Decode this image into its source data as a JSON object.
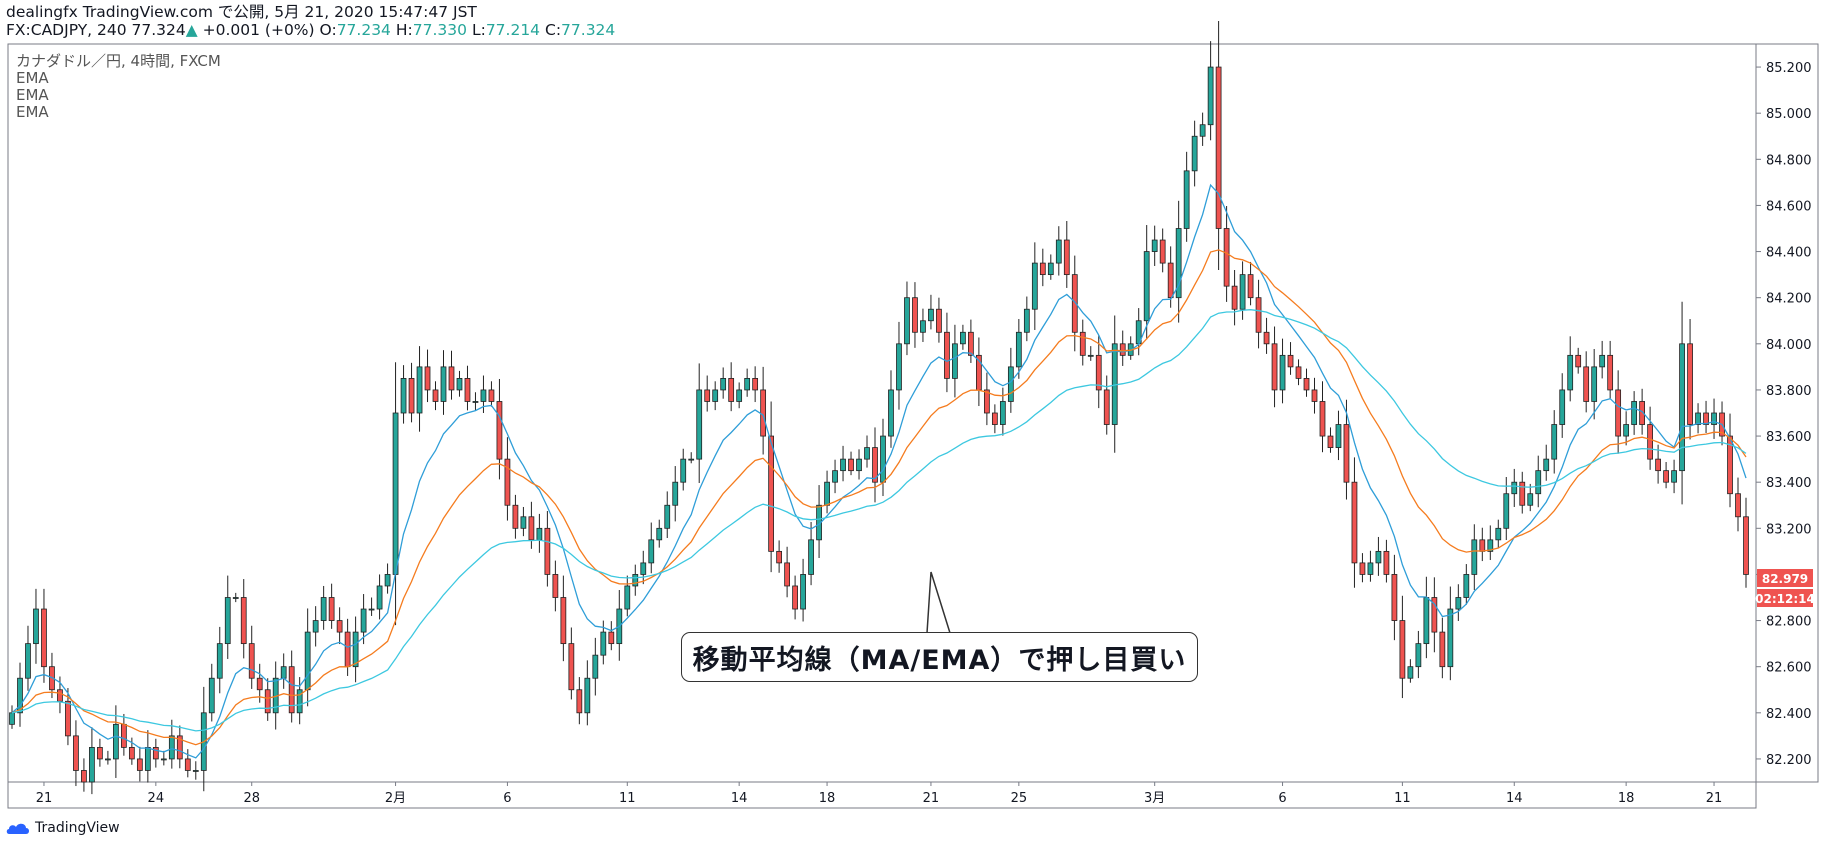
{
  "header": {
    "line1": "dealingfx TradingView.com で公開, 5月 21, 2020 15:47:47 JST",
    "symbol": "FX:CADJPY, 240 77.324",
    "change": "+0.001 (+0%)",
    "open_label": "O:",
    "open": "77.234",
    "high_label": "H:",
    "high": "77.330",
    "low_label": "L:",
    "low": "77.214",
    "close_label": "C:",
    "close": "77.324"
  },
  "legend": {
    "title": "カナダドル／円, 4時間, FXCM",
    "indicators": [
      "EMA",
      "EMA",
      "EMA"
    ]
  },
  "callout": {
    "text": "移動平均線（MA/EMA）で押し目買い"
  },
  "price_tags": {
    "last": "82.979",
    "countdown": "02:12:14"
  },
  "footer": {
    "brand": "TradingView"
  },
  "colors": {
    "up": "#26a69a",
    "down": "#ef5350",
    "candle_border": "#222222",
    "ema_fast": "#2f9ed8",
    "ema_mid": "#f57c1f",
    "ema_slow": "#3dc8e0",
    "price_tag": "#ef5350"
  },
  "chart_data": {
    "type": "candlestick",
    "ylim": [
      82.1,
      85.3
    ],
    "y_ticks": [
      "85.200",
      "85.000",
      "84.800",
      "84.600",
      "84.400",
      "84.200",
      "84.000",
      "83.800",
      "83.600",
      "83.400",
      "83.200",
      "83.000",
      "82.800",
      "82.600",
      "82.400",
      "82.200"
    ],
    "x_tick_labels": [
      "21",
      "24",
      "28",
      "2月",
      "6",
      "11",
      "14",
      "18",
      "21",
      "25",
      "3月",
      "6",
      "11",
      "14",
      "18",
      "21"
    ],
    "x_tick_index": [
      4,
      18,
      30,
      48,
      62,
      77,
      91,
      102,
      115,
      126,
      143,
      159,
      174,
      188,
      202,
      213
    ],
    "closes": [
      82.4,
      82.55,
      82.7,
      82.85,
      82.6,
      82.5,
      82.45,
      82.3,
      82.15,
      82.1,
      82.25,
      82.2,
      82.2,
      82.35,
      82.25,
      82.2,
      82.15,
      82.25,
      82.2,
      82.2,
      82.3,
      82.2,
      82.15,
      82.15,
      82.4,
      82.55,
      82.7,
      82.9,
      82.9,
      82.7,
      82.55,
      82.5,
      82.4,
      82.55,
      82.6,
      82.4,
      82.5,
      82.75,
      82.8,
      82.9,
      82.8,
      82.75,
      82.6,
      82.75,
      82.85,
      82.85,
      82.95,
      83.0,
      83.7,
      83.85,
      83.7,
      83.9,
      83.8,
      83.75,
      83.9,
      83.8,
      83.85,
      83.75,
      83.75,
      83.8,
      83.75,
      83.5,
      83.3,
      83.2,
      83.25,
      83.15,
      83.2,
      83.0,
      82.9,
      82.7,
      82.5,
      82.4,
      82.55,
      82.65,
      82.75,
      82.7,
      82.85,
      82.95,
      83.0,
      83.05,
      83.15,
      83.2,
      83.3,
      83.4,
      83.5,
      83.5,
      83.8,
      83.75,
      83.8,
      83.85,
      83.75,
      83.8,
      83.85,
      83.8,
      83.6,
      83.1,
      83.05,
      82.95,
      82.85,
      83.0,
      83.15,
      83.3,
      83.4,
      83.45,
      83.5,
      83.45,
      83.5,
      83.55,
      83.4,
      83.6,
      83.8,
      84.0,
      84.2,
      84.05,
      84.1,
      84.15,
      84.05,
      83.85,
      84.0,
      84.05,
      83.95,
      83.8,
      83.7,
      83.65,
      83.75,
      83.9,
      84.05,
      84.15,
      84.35,
      84.3,
      84.35,
      84.45,
      84.3,
      84.05,
      83.95,
      83.95,
      83.8,
      83.65,
      84.0,
      83.95,
      84.0,
      84.1,
      84.4,
      84.45,
      84.35,
      84.2,
      84.5,
      84.75,
      84.9,
      84.95,
      85.2,
      84.5,
      84.25,
      84.15,
      84.3,
      84.2,
      84.05,
      84.0,
      83.8,
      83.95,
      83.9,
      83.85,
      83.8,
      83.75,
      83.6,
      83.55,
      83.65,
      83.4,
      83.05,
      83.0,
      83.05,
      83.1,
      83.0,
      82.8,
      82.55,
      82.6,
      82.7,
      82.9,
      82.75,
      82.6,
      82.85,
      82.9,
      83.0,
      83.15,
      83.1,
      83.15,
      83.2,
      83.35,
      83.4,
      83.3,
      83.35,
      83.45,
      83.5,
      83.65,
      83.8,
      83.95,
      83.9,
      83.75,
      83.9,
      83.95,
      83.8,
      83.6,
      83.65,
      83.75,
      83.65,
      83.5,
      83.45,
      83.4,
      83.45,
      84.0,
      83.65,
      83.7,
      83.65,
      83.7,
      83.6,
      83.35,
      83.25,
      83.0
    ]
  }
}
